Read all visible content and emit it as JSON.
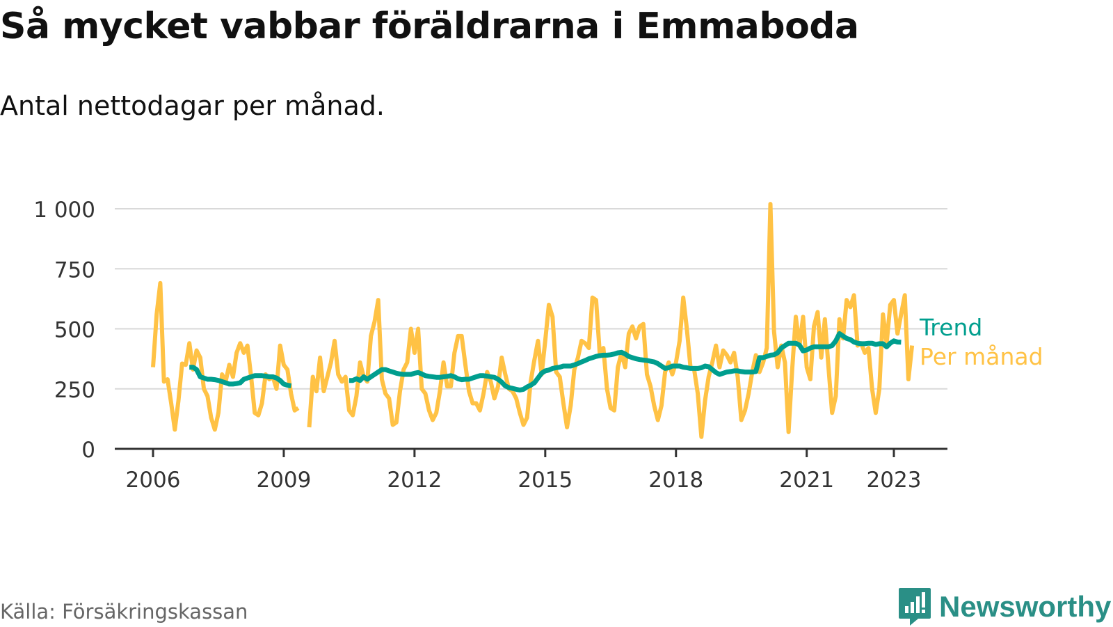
{
  "title": "Så mycket vabbar föräldrarna i Emmaboda",
  "subtitle": "Antal nettodagar per månad.",
  "source": "Källa: Försäkringskassan",
  "brand": {
    "name": "Newsworthy",
    "icon": "newsworthy-logo-icon",
    "color": "#2a8f86"
  },
  "colors": {
    "monthly": "#ffc245",
    "trend": "#009e8e",
    "grid": "#d9d9d9",
    "axis": "#333333"
  },
  "chart_data": {
    "type": "line",
    "x_unit": "year",
    "ylim": [
      0,
      1000
    ],
    "xlim": [
      2005.3,
      2024.4
    ],
    "yticks": [
      {
        "value": 0,
        "label": "0"
      },
      {
        "value": 250,
        "label": "250"
      },
      {
        "value": 500,
        "label": "500"
      },
      {
        "value": 750,
        "label": "750"
      },
      {
        "value": 1000,
        "label": "1 000"
      }
    ],
    "xticks": [
      {
        "value": 2006,
        "label": "2006"
      },
      {
        "value": 2009,
        "label": "2009"
      },
      {
        "value": 2012,
        "label": "2012"
      },
      {
        "value": 2015,
        "label": "2015"
      },
      {
        "value": 2018,
        "label": "2018"
      },
      {
        "value": 2021,
        "label": "2021"
      },
      {
        "value": 2023,
        "label": "2023"
      }
    ],
    "grid": true,
    "legend": "right, end of lines",
    "series": [
      {
        "name": "Per månad",
        "label": "Per månad",
        "color": "#ffc245",
        "segments": [
          {
            "start_year": 2006.0,
            "values": [
              340,
              560,
              690,
              280,
              290,
              190,
              80,
              200,
              355,
              350,
              440,
              330,
              410,
              380,
              250,
              220,
              130,
              80,
              150,
              310,
              280,
              350,
              300,
              400,
              440,
              400,
              430,
              300,
              150,
              140,
              190,
              310,
              290,
              300,
              250,
              430,
              350,
              330,
              230,
              160,
              170
            ]
          },
          {
            "start_year": 2009.5833,
            "values": [
              90,
              300,
              240,
              380,
              240,
              300,
              360,
              450,
              310,
              280,
              300,
              160,
              140,
              220,
              360,
              300,
              280,
              470,
              530,
              620,
              290,
              230,
              210,
              100,
              110,
              240,
              330,
              360,
              500,
              400,
              500,
              250,
              230,
              160,
              120,
              150,
              240,
              360,
              260,
              260,
              400,
              470,
              470,
              350,
              240,
              190,
              190,
              160,
              230,
              320,
              280,
              210,
              260,
              380,
              310,
              250,
              240,
              210,
              150,
              100,
              130,
              280,
              370,
              450,
              310,
              450,
              600,
              550,
              320,
              300,
              190,
              90,
              180,
              330,
              380,
              450,
              440,
              420,
              630,
              620,
              400,
              420,
              250,
              170,
              160,
              340,
              400,
              340,
              480,
              510,
              460,
              510,
              520,
              310,
              260,
              180,
              120,
              180,
              320,
              360,
              310,
              360,
              450,
              630,
              500,
              340,
              330,
              230,
              50,
              200,
              300,
              360,
              430,
              340,
              410,
              390,
              360,
              400,
              300,
              120,
              160,
              230,
              320,
              390,
              320,
              360,
              420,
              1020,
              490,
              340,
              430,
              360,
              70,
              330,
              550,
              430,
              550,
              340,
              290,
              510,
              570,
              380,
              540,
              340,
              150,
              220,
              540,
              460,
              620,
              590,
              640,
              430,
              440,
              400,
              420,
              250,
              150,
              250,
              560,
              440,
              600,
              620,
              480,
              560,
              640,
              290,
              430
            ]
          }
        ]
      },
      {
        "name": "Trend",
        "label": "Trend",
        "color": "#009e8e",
        "segments": [
          {
            "start_year": 2006.8333,
            "values": [
              340,
              340,
              330,
              300,
              295,
              290,
              290,
              288,
              285,
              280,
              275,
              270,
              270,
              272,
              275,
              290,
              295,
              300,
              305,
              305,
              305,
              303,
              300,
              300,
              295,
              285,
              270,
              265,
              262
            ]
          },
          {
            "start_year": 2010.5,
            "values": [
              285,
              285,
              292,
              285,
              300,
              290,
              300,
              310,
              320,
              330,
              330,
              325,
              320,
              315,
              312,
              310,
              310,
              310,
              315,
              318,
              312,
              305,
              302,
              300,
              298,
              298,
              300,
              302,
              305,
              300,
              292,
              288,
              290,
              290,
              295,
              300,
              305,
              305,
              303,
              300,
              298,
              290,
              278,
              262,
              255,
              252,
              248,
              245,
              248,
              258,
              265,
              275,
              295,
              315,
              325,
              328,
              335,
              338,
              340,
              345,
              345,
              345,
              350,
              355,
              362,
              368,
              375,
              380,
              385,
              388,
              390,
              390,
              392,
              395,
              400,
              402,
              395,
              385,
              380,
              375,
              372,
              370,
              368,
              365,
              362,
              355,
              345,
              335,
              338,
              345,
              345,
              345,
              340,
              338,
              335,
              335,
              335,
              338,
              345,
              342,
              330,
              318,
              310,
              315,
              320,
              322,
              325,
              325,
              322,
              320,
              320,
              320,
              322,
              380,
              380,
              385,
              390,
              392,
              400,
              420,
              430,
              440,
              440,
              440,
              432,
              408,
              412,
              420,
              425,
              425,
              425,
              425,
              425,
              430,
              450,
              480,
              470,
              460,
              455,
              445,
              440,
              438,
              438,
              440,
              440,
              435,
              438,
              438,
              425,
              440,
              450,
              445,
              444
            ]
          }
        ]
      }
    ]
  }
}
